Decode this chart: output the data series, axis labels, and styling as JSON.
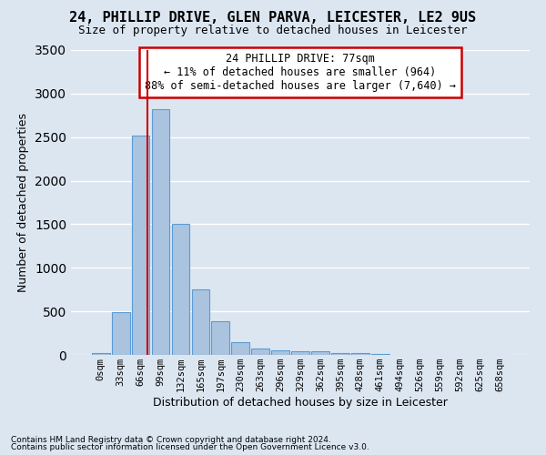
{
  "title1": "24, PHILLIP DRIVE, GLEN PARVA, LEICESTER, LE2 9US",
  "title2": "Size of property relative to detached houses in Leicester",
  "xlabel": "Distribution of detached houses by size in Leicester",
  "ylabel": "Number of detached properties",
  "footnote1": "Contains HM Land Registry data © Crown copyright and database right 2024.",
  "footnote2": "Contains public sector information licensed under the Open Government Licence v3.0.",
  "annotation_title": "24 PHILLIP DRIVE: 77sqm",
  "annotation_line1": "← 11% of detached houses are smaller (964)",
  "annotation_line2": "88% of semi-detached houses are larger (7,640) →",
  "bar_labels": [
    "0sqm",
    "33sqm",
    "66sqm",
    "99sqm",
    "132sqm",
    "165sqm",
    "197sqm",
    "230sqm",
    "263sqm",
    "296sqm",
    "329sqm",
    "362sqm",
    "395sqm",
    "428sqm",
    "461sqm",
    "494sqm",
    "526sqm",
    "559sqm",
    "592sqm",
    "625sqm",
    "658sqm"
  ],
  "bar_values": [
    20,
    490,
    2520,
    2820,
    1500,
    750,
    390,
    145,
    75,
    50,
    40,
    40,
    25,
    20,
    10,
    5,
    5,
    5,
    5,
    5,
    5
  ],
  "bar_color": "#aac4e0",
  "bar_edge_color": "#5b9bd5",
  "bg_color": "#dce6f1",
  "grid_color": "#ffffff",
  "vline_color": "#cc0000",
  "annotation_box_color": "#cc0000",
  "ylim": [
    0,
    3500
  ],
  "yticks": [
    0,
    500,
    1000,
    1500,
    2000,
    2500,
    3000,
    3500
  ],
  "title1_fontsize": 11,
  "title2_fontsize": 9
}
